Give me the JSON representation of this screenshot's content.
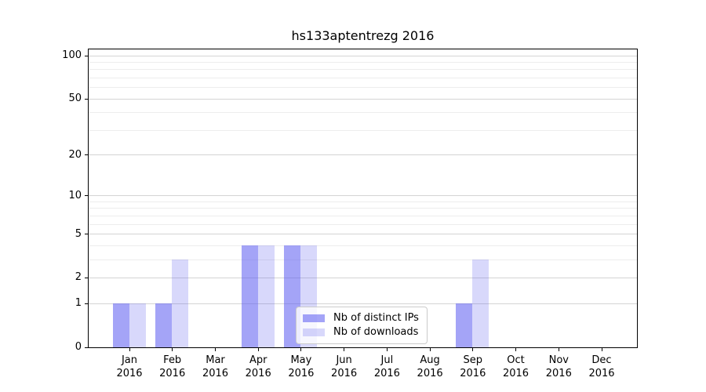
{
  "title": "hs133aptentrezg 2016",
  "chart_data": {
    "type": "bar",
    "title": "hs133aptentrezg 2016",
    "categories": [
      "Jan 2016",
      "Feb 2016",
      "Mar 2016",
      "Apr 2016",
      "May 2016",
      "Jun 2016",
      "Jul 2016",
      "Aug 2016",
      "Sep 2016",
      "Oct 2016",
      "Nov 2016",
      "Dec 2016"
    ],
    "series": [
      {
        "name": "Nb of distinct IPs",
        "color": "rgba(90,90,240,0.55)",
        "values": [
          1,
          1,
          0,
          4,
          4,
          0,
          0,
          0,
          1,
          0,
          0,
          0
        ]
      },
      {
        "name": "Nb of downloads",
        "color": "rgba(90,90,240,0.24)",
        "values": [
          1,
          3,
          0,
          4,
          4,
          0,
          0,
          0,
          3,
          0,
          0,
          0
        ]
      }
    ],
    "yscale": "log1p",
    "ylim": [
      0,
      111
    ],
    "ytick_values": [
      0,
      1,
      2,
      5,
      10,
      20,
      50,
      100
    ],
    "ytick_labels": [
      "0",
      "1",
      "2",
      "5",
      "10",
      "20",
      "50",
      "100"
    ],
    "y_minor_gridlines": [
      3,
      4,
      6,
      7,
      8,
      9,
      30,
      40,
      60,
      70,
      80,
      90
    ],
    "grid": "horizontal",
    "legend_position": "inside-lower-center",
    "axis_color": "#000000",
    "major_grid_color": "#d4d4d4",
    "minor_grid_color": "#ededed"
  }
}
